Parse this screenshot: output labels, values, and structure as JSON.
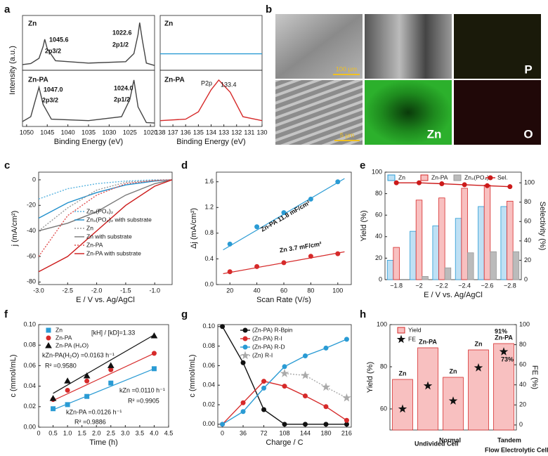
{
  "panel_labels": [
    "a",
    "b",
    "c",
    "d",
    "e",
    "f",
    "g",
    "h"
  ],
  "micrographs": {
    "scale_bars": [
      "100 μm",
      "5 μm"
    ],
    "element_labels": [
      "P",
      "Zn",
      "O"
    ]
  },
  "chart_data": [
    {
      "type": "line",
      "title": "Zn",
      "title_color": "#1f7fc4",
      "ylabel": "Intensity (a.u.)",
      "x": [
        1051,
        1049,
        1047,
        1046,
        1045.6,
        1045,
        1043,
        1035,
        1026,
        1024,
        1023,
        1022.6,
        1022,
        1021,
        1019
      ],
      "xlim": [
        1051,
        1019
      ],
      "ylim": [
        0,
        1.15
      ],
      "series": [
        {
          "color": "#444444",
          "values": [
            0.12,
            0.14,
            0.25,
            0.5,
            0.65,
            0.45,
            0.2,
            0.15,
            0.18,
            0.35,
            0.75,
            1.0,
            0.65,
            0.15,
            0.1
          ]
        }
      ],
      "annotations": [
        {
          "text": "1045.6",
          "color": "#111111"
        },
        {
          "text": "2p3/2",
          "color": "#111111"
        },
        {
          "text": "1022.6",
          "color": "#111111"
        },
        {
          "text": "2p1/2",
          "color": "#111111"
        }
      ]
    },
    {
      "type": "line",
      "title": "Zn-PA",
      "title_color": "#cc2222",
      "xlabel": "Binding Energy (eV)",
      "x": [
        1051,
        1049,
        1048,
        1047,
        1046,
        1044,
        1035,
        1027,
        1025,
        1024,
        1023,
        1021,
        1019
      ],
      "xlim": [
        1051,
        1019
      ],
      "ylim": [
        0,
        1.15
      ],
      "xticks": [
        1050,
        1045,
        1040,
        1035,
        1030,
        1025,
        1020
      ],
      "series": [
        {
          "color": "#444444",
          "values": [
            0.1,
            0.2,
            0.5,
            0.8,
            0.45,
            0.15,
            0.12,
            0.2,
            0.55,
            0.95,
            0.4,
            0.08,
            0.07
          ]
        }
      ],
      "annotations": [
        {
          "text": "1047.0",
          "color": "#111111"
        },
        {
          "text": "2p3/2",
          "color": "#111111"
        },
        {
          "text": "1024.0",
          "color": "#111111"
        },
        {
          "text": "2p1/2",
          "color": "#111111"
        }
      ]
    },
    {
      "type": "line",
      "title": "Zn",
      "title_color": "#1f7fc4",
      "x": [
        138,
        130
      ],
      "xlim": [
        138,
        130
      ],
      "ylim": [
        0,
        1
      ],
      "series": [
        {
          "color": "#2a9bd4",
          "values": [
            0.3,
            0.3
          ]
        }
      ]
    },
    {
      "type": "line",
      "title": "Zn-PA",
      "title_color": "#cc2222",
      "xlabel": "Binding Energy (eV)",
      "x": [
        138,
        136,
        135,
        134,
        133.4,
        132.5,
        131.5,
        130
      ],
      "xlim": [
        138,
        130
      ],
      "ylim": [
        0,
        1.15
      ],
      "xticks": [
        138,
        137,
        136,
        135,
        134,
        133,
        132,
        131,
        130
      ],
      "series": [
        {
          "color": "#d62a2a",
          "values": [
            0.12,
            0.15,
            0.3,
            0.75,
            0.95,
            0.7,
            0.2,
            0.12
          ]
        }
      ],
      "annotations": [
        {
          "text": "P2p",
          "color": "#111111"
        },
        {
          "text": "133.4",
          "color": "#111111"
        }
      ]
    },
    {
      "type": "line",
      "xlabel": "E / V vs. Ag/AgCl",
      "ylabel": "j (mA/cm²)",
      "x": [
        -3.0,
        -2.5,
        -2.0,
        -1.5,
        -1.0,
        -0.7
      ],
      "xlim": [
        -3.0,
        -0.7
      ],
      "ylim": [
        -82,
        6
      ],
      "xticks": [
        {
          "value": -3,
          "label": "-3.0"
        },
        -2.5,
        {
          "value": -2,
          "label": "-2.0"
        },
        -1.5,
        {
          "value": -1,
          "label": "-1.0"
        }
      ],
      "yticks": [
        0,
        -20,
        -40,
        -60,
        -80
      ],
      "series": [
        {
          "name": "Zn₃(PO₄)₂",
          "color": "#5ab4e0",
          "dash": true,
          "values": [
            -15,
            -7,
            -3,
            -1,
            0,
            0
          ]
        },
        {
          "name": "Zn₃(PO₄)₂ with substrate",
          "color": "#1f8fcc",
          "values": [
            -30,
            -18,
            -10,
            -4,
            -1,
            0
          ]
        },
        {
          "name": "Zn",
          "color": "#999999",
          "dash": true,
          "values": [
            -40,
            -22,
            -8,
            -2,
            -0.5,
            0
          ]
        },
        {
          "name": "Zn with substrate",
          "color": "#777777",
          "values": [
            -40,
            -34,
            -25,
            -12,
            -3,
            0
          ]
        },
        {
          "name": "Zn-PA",
          "color": "#e05050",
          "dash": true,
          "values": [
            -60,
            -28,
            -12,
            -3,
            -0.5,
            0
          ]
        },
        {
          "name": "Zn-PA with substrate",
          "color": "#cc1a1a",
          "values": [
            -72,
            -60,
            -40,
            -20,
            -5,
            0
          ]
        }
      ]
    },
    {
      "type": "scatter",
      "xlabel": "Scan Rate (V/s)",
      "ylabel": "Δj (mA/cm²)",
      "x": [
        20,
        40,
        60,
        80,
        100
      ],
      "xlim": [
        10,
        110
      ],
      "ylim": [
        0,
        1.75
      ],
      "xticks": [
        20,
        40,
        60,
        80,
        100
      ],
      "yticks": [
        {
          "value": 0,
          "label": "0.0"
        },
        0.4,
        0.8,
        1.2,
        1.6
      ],
      "series": [
        {
          "color": "#2a9bd4",
          "marker": "circle",
          "values": [
            0.63,
            0.9,
            1.12,
            1.33,
            1.6
          ]
        },
        {
          "color": "#d62a2a",
          "marker": "circle",
          "values": [
            0.2,
            0.28,
            0.34,
            0.44,
            0.48
          ]
        }
      ],
      "fits": [
        {
          "color": "#2a9bd4",
          "x": [
            15,
            105
          ],
          "values": [
            0.54,
            1.65
          ]
        },
        {
          "color": "#d62a2a",
          "x": [
            15,
            105
          ],
          "values": [
            0.17,
            0.51
          ]
        }
      ],
      "annotations": [
        {
          "text": "Zn-PA 11.8 mF/cm²",
          "color": "#1f8fcc"
        },
        {
          "text": "Zn 3.7 mF/cm²",
          "color": "#cc1a1a"
        }
      ]
    },
    {
      "type": "bar",
      "xlabel": "E / V vs. Ag/AgCl",
      "ylabel": "Yield (%)",
      "y2label": "Selectivity (%)",
      "categories": [
        "−1.8",
        "−2",
        "−2.2",
        "−2.4",
        "−2.6",
        "−2.8"
      ],
      "ylim": [
        0,
        100
      ],
      "yticks": [
        0,
        20,
        40,
        60,
        80,
        100
      ],
      "y2lim": [
        0,
        111
      ],
      "y2ticks": [
        0,
        20,
        40,
        60,
        80,
        100
      ],
      "series": [
        {
          "name": "Zn",
          "color": "#bfe0f4",
          "stroke": "#2a9bd4",
          "values": [
            18,
            45,
            50,
            57,
            68,
            68
          ]
        },
        {
          "name": "Zn-PA",
          "color": "#f8c0c0",
          "stroke": "#d62a2a",
          "values": [
            30,
            74,
            76,
            85,
            88,
            73
          ]
        },
        {
          "name": "Zn₃(PO₄)₂",
          "color": "#bbbbbb",
          "stroke": "#999999",
          "values": [
            0,
            3,
            11,
            25,
            26,
            26
          ]
        },
        {
          "name": "Sel.",
          "color": "#cc1a1a",
          "axis": "y2",
          "marker": "circle",
          "connect": true,
          "values": [
            100,
            100,
            99,
            98,
            97,
            96
          ]
        }
      ]
    },
    {
      "type": "scatter",
      "xlabel": "Time (h)",
      "ylabel": "c (mmol/mL)",
      "x": [
        0.5,
        1,
        1.67,
        2.5,
        4
      ],
      "xlim": [
        0,
        4.5
      ],
      "ylim": [
        0,
        0.1
      ],
      "xticks": [
        0,
        0.5,
        {
          "value": 1,
          "label": "1.0"
        },
        1.5,
        {
          "value": 2,
          "label": "2.0"
        },
        2.5,
        {
          "value": 3,
          "label": "3.0"
        },
        3.5,
        {
          "value": 4,
          "label": "4.0"
        },
        4.5
      ],
      "yticks": [
        {
          "value": 0,
          "label": "0.00"
        },
        {
          "value": 0.02,
          "label": "0.02"
        },
        {
          "value": 0.04,
          "label": "0.04"
        },
        {
          "value": 0.06,
          "label": "0.06"
        },
        {
          "value": 0.08,
          "label": "0.08"
        },
        {
          "value": 0.1,
          "label": "0.10"
        }
      ],
      "series": [
        {
          "name": "Zn",
          "color": "#2a9bd4",
          "marker": "square",
          "values": [
            0.018,
            0.022,
            0.03,
            0.043,
            0.057
          ]
        },
        {
          "name": "Zn-PA",
          "color": "#d62a2a",
          "marker": "circle",
          "values": [
            0.027,
            0.036,
            0.045,
            0.056,
            0.072
          ]
        },
        {
          "name": "Zn-PA (H₂O)",
          "color": "#111111",
          "marker": "triangle",
          "values": [
            0.028,
            0.045,
            0.05,
            0.06,
            0.089
          ]
        }
      ],
      "fits": [
        {
          "color": "#2a9bd4",
          "x": [
            0.5,
            4
          ],
          "values": [
            0.017,
            0.057
          ]
        },
        {
          "color": "#d62a2a",
          "x": [
            0.5,
            4
          ],
          "values": [
            0.026,
            0.072
          ]
        },
        {
          "color": "#111111",
          "x": [
            0.5,
            4
          ],
          "values": [
            0.033,
            0.09
          ]
        }
      ],
      "annotations": [
        {
          "text": "[kH] / [kD]=1.33",
          "color": "#888888"
        },
        {
          "text": "kZn-PA(H₂O) =0.0163 h⁻¹",
          "color": "#111111"
        },
        {
          "text": "R² =0.9580",
          "color": "#111111"
        },
        {
          "text": "kZn =0.0110 h⁻¹",
          "color": "#1f8fcc"
        },
        {
          "text": "R² =0.9905",
          "color": "#1f8fcc"
        },
        {
          "text": "kZn-PA =0.0126 h⁻¹",
          "color": "#cc1a1a"
        },
        {
          "text": "R² =0.9886",
          "color": "#cc1a1a"
        }
      ]
    },
    {
      "type": "line",
      "xlabel": "Charge / C",
      "ylabel": "c (mmol/mL)",
      "x": [
        0,
        36,
        72,
        108,
        144,
        180,
        216
      ],
      "xlim": [
        -8,
        224
      ],
      "ylim": [
        -0.003,
        0.102
      ],
      "xticks": [
        0,
        36,
        72,
        108,
        144,
        180,
        216
      ],
      "yticks": [
        {
          "value": 0,
          "label": "0.00"
        },
        {
          "value": 0.02,
          "label": "0.02"
        },
        {
          "value": 0.04,
          "label": "0.04"
        },
        {
          "value": 0.06,
          "label": "0.06"
        },
        {
          "value": 0.08,
          "label": "0.08"
        },
        {
          "value": 0.1,
          "label": "0.10"
        }
      ],
      "series": [
        {
          "name": "(Zn-PA) R-Bpin",
          "color": "#111111",
          "marker": "circle",
          "values": [
            0.1,
            0.063,
            0.015,
            0,
            0,
            0,
            0
          ]
        },
        {
          "name": "(Zn-PA) R-I",
          "color": "#d62a2a",
          "marker": "circle",
          "values": [
            0,
            0.022,
            0.044,
            0.039,
            0.029,
            0.018,
            0.004
          ]
        },
        {
          "name": "(Zn-PA) R-D",
          "color": "#2a9bd4",
          "marker": "circle",
          "values": [
            0,
            0.013,
            0.037,
            0.059,
            0.07,
            0.078,
            0.087
          ]
        },
        {
          "name": "(Zn) R-I",
          "color": "#aaaaaa",
          "marker": "star",
          "dash": true,
          "values": [
            null,
            null,
            null,
            0.052,
            0.05,
            0.038,
            0.027
          ]
        }
      ]
    },
    {
      "type": "bar",
      "ylabel": "Yield (%)",
      "y2label": "FE (%)",
      "categories": [
        "Zn",
        "Zn-PA",
        "Zn",
        "Zn",
        "Zn-PA"
      ],
      "category_colors": [
        "#cc1a1a",
        "#cc1a1a",
        "#e8a020",
        "#111111",
        "#111111"
      ],
      "ylim": [
        50,
        100
      ],
      "yticks": [
        60,
        80,
        100
      ],
      "y2lim": [
        -5,
        100
      ],
      "y2ticks": [
        0,
        20,
        40,
        60,
        80,
        100
      ],
      "series": [
        {
          "name": "Yield",
          "color": "#f8c0c0",
          "stroke": "#d62a2a",
          "values": [
            74,
            89,
            75,
            88,
            91
          ]
        },
        {
          "name": "FE",
          "color": "#111111",
          "axis": "y2",
          "marker": "star",
          "values": [
            16,
            39,
            24,
            57,
            73
          ]
        }
      ],
      "annotations": [
        {
          "text": "91%",
          "color": "#cc1a1a"
        },
        {
          "text": "73%",
          "color": "#111111"
        },
        {
          "text": "Undivided Cell",
          "color": "#cc1a1a"
        },
        {
          "text": "Normal",
          "color": "#e8a020"
        },
        {
          "text": "Tandem",
          "color": "#111111"
        },
        {
          "text": "Flow Electrolytic Cell",
          "color": "#111111"
        }
      ]
    }
  ]
}
